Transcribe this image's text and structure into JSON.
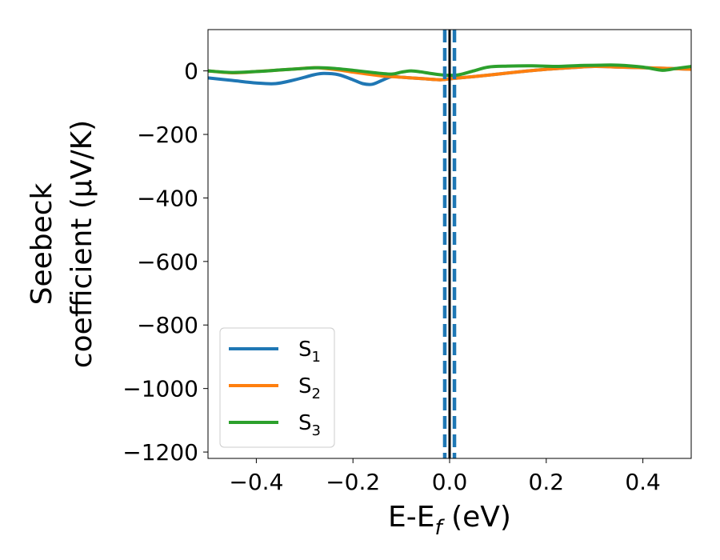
{
  "chart_data": {
    "type": "line",
    "xlabel": "E-E",
    "xlabel_sub": "f",
    "xlabel_unit": " (eV)",
    "ylabel_line1": "Seebeck",
    "ylabel_line2": "coefficient  (μV/K)",
    "xlim": [
      -0.5,
      0.5
    ],
    "ylim": [
      -1220,
      130
    ],
    "xticks": [
      -0.4,
      -0.2,
      0.0,
      0.2,
      0.4
    ],
    "xtick_labels": [
      "−0.4",
      "−0.2",
      "0.0",
      "0.2",
      "0.4"
    ],
    "yticks": [
      0,
      -200,
      -400,
      -600,
      -800,
      -1000,
      -1200
    ],
    "ytick_labels": [
      "0",
      "−200",
      "−400",
      "−600",
      "−800",
      "−1000",
      "−1200"
    ],
    "legend_position": "lower-left",
    "grid": false,
    "series": [
      {
        "name": "S",
        "sub": "1",
        "color": "#1f77b4",
        "x": [
          -0.5,
          -0.45,
          -0.4,
          -0.36,
          -0.32,
          -0.28,
          -0.26,
          -0.23,
          -0.2,
          -0.18,
          -0.16,
          -0.14,
          -0.12,
          -0.1,
          -0.08,
          -0.05,
          -0.02,
          0.0,
          0.02,
          0.05,
          0.1,
          0.15,
          0.2,
          0.25,
          0.3,
          0.35,
          0.4,
          0.45,
          0.5
        ],
        "y": [
          -22,
          -30,
          -38,
          -40,
          -28,
          -12,
          -8,
          -12,
          -28,
          -40,
          -42,
          -30,
          -18,
          -20,
          -22,
          -25,
          -28,
          -25,
          -22,
          -18,
          -10,
          -2,
          5,
          10,
          14,
          12,
          10,
          8,
          5
        ]
      },
      {
        "name": "S",
        "sub": "2",
        "color": "#ff7f0e",
        "x": [
          -0.5,
          -0.45,
          -0.4,
          -0.36,
          -0.32,
          -0.28,
          -0.26,
          -0.23,
          -0.2,
          -0.18,
          -0.16,
          -0.14,
          -0.12,
          -0.1,
          -0.08,
          -0.05,
          -0.02,
          0.0,
          0.02,
          0.05,
          0.1,
          0.15,
          0.2,
          0.25,
          0.3,
          0.35,
          0.4,
          0.45,
          0.5
        ],
        "y": [
          0,
          -6,
          -2,
          2,
          6,
          10,
          8,
          3,
          -4,
          -8,
          -12,
          -16,
          -18,
          -20,
          -22,
          -25,
          -28,
          -25,
          -22,
          -18,
          -10,
          -2,
          5,
          10,
          14,
          12,
          10,
          8,
          5
        ]
      },
      {
        "name": "S",
        "sub": "3",
        "color": "#2ca02c",
        "x": [
          -0.5,
          -0.45,
          -0.4,
          -0.35,
          -0.3,
          -0.27,
          -0.24,
          -0.2,
          -0.16,
          -0.12,
          -0.1,
          -0.08,
          -0.06,
          -0.04,
          -0.02,
          0.0,
          0.02,
          0.05,
          0.08,
          0.12,
          0.17,
          0.22,
          0.27,
          0.31,
          0.35,
          0.4,
          0.44,
          0.47,
          0.5
        ],
        "y": [
          0,
          -5,
          -2,
          3,
          8,
          10,
          8,
          2,
          -5,
          -10,
          -4,
          0,
          -3,
          -8,
          -12,
          -14,
          -12,
          0,
          12,
          15,
          16,
          14,
          17,
          18,
          18,
          12,
          2,
          8,
          14
        ]
      }
    ],
    "vlines": [
      {
        "x": -0.01,
        "color": "#1f77b4",
        "style": "dashed"
      },
      {
        "x": 0.01,
        "color": "#1f77b4",
        "style": "dashed"
      },
      {
        "x": 0.0,
        "color": "#000000",
        "style": "solid"
      }
    ]
  }
}
